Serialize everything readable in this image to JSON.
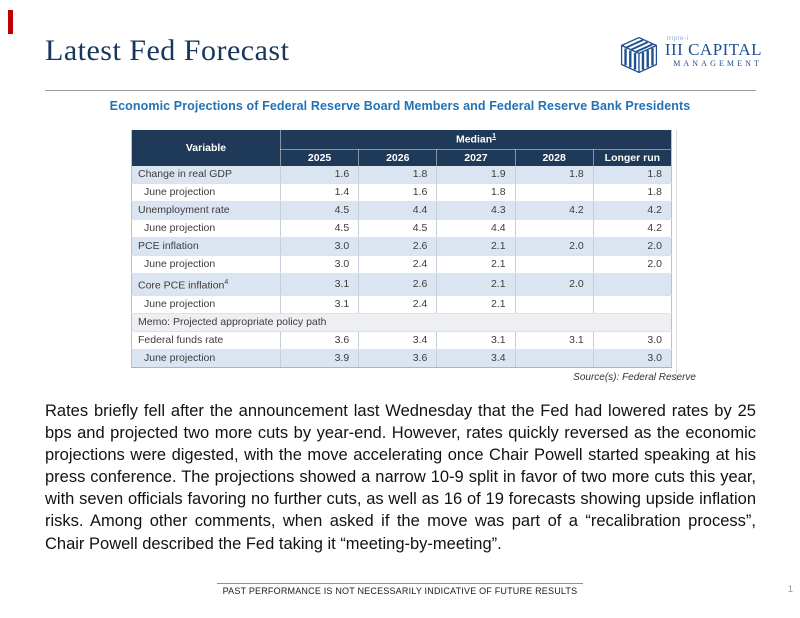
{
  "page": {
    "title": "Latest Fed Forecast"
  },
  "logo": {
    "tagline": "triple-i",
    "name": "III CAPITAL",
    "subname": "MANAGEMENT"
  },
  "figure": {
    "title": "Economic Projections of Federal Reserve Board Members and Federal Reserve Bank Presidents",
    "source": "Source(s): Federal Reserve",
    "table": {
      "group_header": "Median",
      "group_header_footnote": "1",
      "columns": [
        "Variable",
        "2025",
        "2026",
        "2027",
        "2028",
        "Longer run"
      ],
      "rows": [
        {
          "label": "Change in real GDP",
          "indent": false,
          "shade": "blue",
          "values": [
            "1.6",
            "1.8",
            "1.9",
            "1.8",
            "1.8"
          ]
        },
        {
          "label": "June projection",
          "indent": true,
          "shade": "white",
          "values": [
            "1.4",
            "1.6",
            "1.8",
            "",
            "1.8"
          ]
        },
        {
          "label": "Unemployment rate",
          "indent": false,
          "shade": "blue",
          "values": [
            "4.5",
            "4.4",
            "4.3",
            "4.2",
            "4.2"
          ]
        },
        {
          "label": "June projection",
          "indent": true,
          "shade": "white",
          "values": [
            "4.5",
            "4.5",
            "4.4",
            "",
            "4.2"
          ]
        },
        {
          "label": "PCE inflation",
          "indent": false,
          "shade": "blue",
          "values": [
            "3.0",
            "2.6",
            "2.1",
            "2.0",
            "2.0"
          ]
        },
        {
          "label": "June projection",
          "indent": true,
          "shade": "white",
          "values": [
            "3.0",
            "2.4",
            "2.1",
            "",
            "2.0"
          ]
        },
        {
          "label": "Core PCE inflation",
          "footnote": "4",
          "indent": false,
          "shade": "blue",
          "values": [
            "3.1",
            "2.6",
            "2.1",
            "2.0",
            ""
          ]
        },
        {
          "label": "June projection",
          "indent": true,
          "shade": "white",
          "values": [
            "3.1",
            "2.4",
            "2.1",
            "",
            ""
          ]
        },
        {
          "label": "Memo: Projected appropriate policy path",
          "memo": true
        },
        {
          "label": "Federal funds rate",
          "indent": false,
          "shade": "white",
          "values": [
            "3.6",
            "3.4",
            "3.1",
            "3.1",
            "3.0"
          ]
        },
        {
          "label": "June projection",
          "indent": true,
          "shade": "blue",
          "values": [
            "3.9",
            "3.6",
            "3.4",
            "",
            "3.0"
          ]
        }
      ]
    }
  },
  "body_paragraph": "Rates briefly fell after the announcement last Wednesday that the Fed had lowered rates by 25 bps and projected two more cuts by year-end. However, rates quickly reversed as the economic projections were digested, with the move accelerating once Chair Powell started speaking at his press conference. The projections showed a narrow 10-9 split in favor of two more cuts this year, with seven officials favoring no further cuts, as well as 16 of 19 forecasts showing upside inflation risks.  Among other comments, when asked if the move was part of a “recalibration process”, Chair Powell described the Fed taking it “meeting-by-meeting”.",
  "footer": {
    "disclaimer": "PAST PERFORMANCE IS NOT NECESSARILY INDICATIVE OF FUTURE RESULTS",
    "page_number": "1"
  },
  "colors": {
    "accent": "#C00000",
    "title_navy": "#17365D",
    "table_title_blue": "#2173B8",
    "header_bg": "#1F3A58",
    "row_blue": "#DBE5F1",
    "memo_bg": "#EDEFF2",
    "logo_navy": "#1E4F8F",
    "logo_light": "#8AAFD6"
  }
}
